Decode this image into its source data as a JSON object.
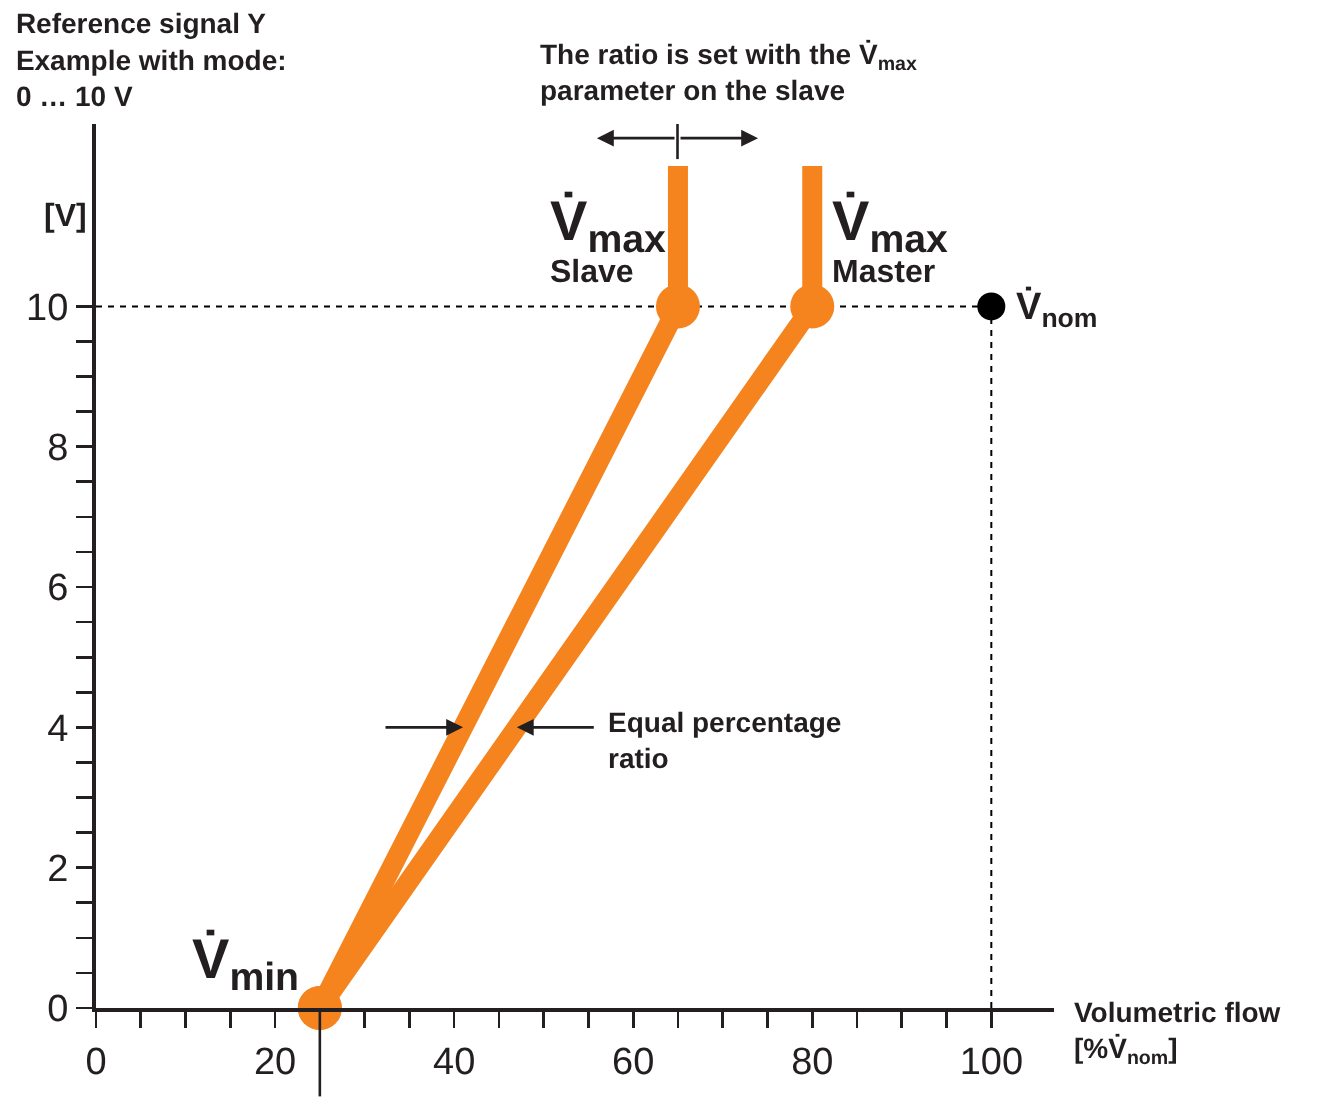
{
  "chart_data": {
    "type": "line",
    "title": "Reference signal Y\nExample with mode:\n0 … 10 V",
    "xlabel": "Volumetric flow\n[%V̇$_{nom}$]",
    "ylabel": "[V]",
    "series": [
      {
        "color": "#f5841f",
        "x": [
          25,
          65,
          65
        ],
        "values": [
          0,
          10,
          12
        ]
      },
      {
        "color": "#f5841f",
        "x": [
          25,
          80,
          80
        ],
        "values": [
          0,
          10,
          12
        ]
      },
      {
        "type": "scatter",
        "color": "#000000",
        "x": [
          100
        ],
        "values": [
          10
        ]
      }
    ],
    "annotations": [
      {
        "text": "V̇$_{max}$\nSlave",
        "x": 65,
        "y": 10
      },
      {
        "text": "V̇$_{max}$\nMaster",
        "x": 80,
        "y": 10
      },
      {
        "text": "V̇$_{min}$",
        "x": 25,
        "y": 0
      },
      {
        "text": "V̇$_{nom}$",
        "x": 100,
        "y": 10
      },
      "The ratio is set with the V̇$_{max}$\nparameter on the slave",
      {
        "text": "Equal percentage\nratio",
        "x": 47,
        "y": 4
      }
    ],
    "ref_lines": [
      {
        "axis": "y",
        "value": 10,
        "line_style": "dotted",
        "color": "#000000"
      },
      {
        "axis": "x",
        "value": 100,
        "line_style": "dotted",
        "color": "#000000"
      }
    ],
    "xlim": [
      0,
      107
    ],
    "ylim": [
      0,
      12.6
    ],
    "xticks": [
      0,
      {
        "value": 5,
        "label": null
      },
      {
        "value": 10,
        "label": null
      },
      {
        "value": 15,
        "label": null
      },
      20,
      {
        "value": 25,
        "label": null
      },
      {
        "value": 30,
        "label": null
      },
      {
        "value": 35,
        "label": null
      },
      40,
      {
        "value": 45,
        "label": null
      },
      {
        "value": 50,
        "label": null
      },
      {
        "value": 55,
        "label": null
      },
      60,
      {
        "value": 65,
        "label": null
      },
      {
        "value": 70,
        "label": null
      },
      {
        "value": 75,
        "label": null
      },
      80,
      {
        "value": 85,
        "label": null
      },
      {
        "value": 90,
        "label": null
      },
      {
        "value": 95,
        "label": null
      },
      100
    ],
    "yticks": [
      0,
      {
        "value": 0.5,
        "label": null
      },
      {
        "value": 1,
        "label": null
      },
      {
        "value": 1.5,
        "label": null
      },
      2,
      {
        "value": 2.5,
        "label": null
      },
      {
        "value": 3,
        "label": null
      },
      {
        "value": 3.5,
        "label": null
      },
      4,
      {
        "value": 4.5,
        "label": null
      },
      {
        "value": 5,
        "label": null
      },
      {
        "value": 5.5,
        "label": null
      },
      6,
      {
        "value": 6.5,
        "label": null
      },
      {
        "value": 7,
        "label": null
      },
      {
        "value": 7.5,
        "label": null
      },
      8,
      {
        "value": 8.5,
        "label": null
      },
      {
        "value": 9,
        "label": null
      },
      {
        "value": 9.5,
        "label": null
      },
      10
    ],
    "grid": false,
    "marker": "circle",
    "line_style": "solid"
  }
}
